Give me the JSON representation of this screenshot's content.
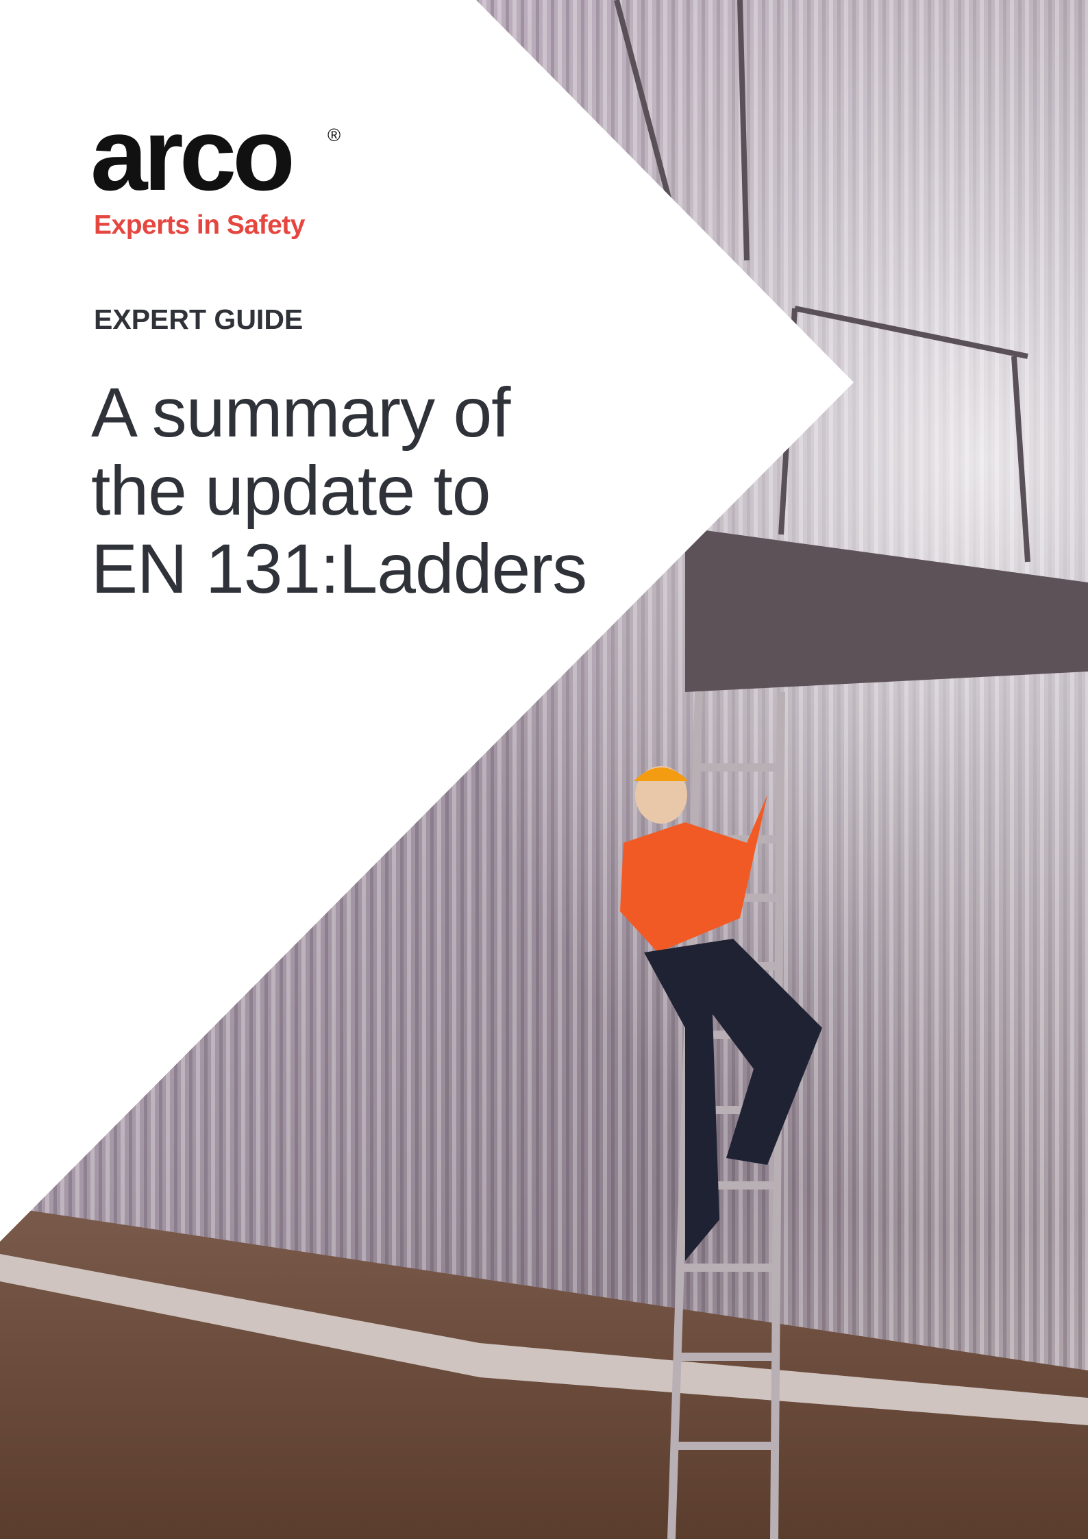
{
  "logo": {
    "name": "arco",
    "registered": "®",
    "tagline": "Experts in Safety"
  },
  "document": {
    "label": "EXPERT GUIDE",
    "title": [
      "A summary of",
      "the update to",
      "EN 131:Ladders"
    ]
  }
}
